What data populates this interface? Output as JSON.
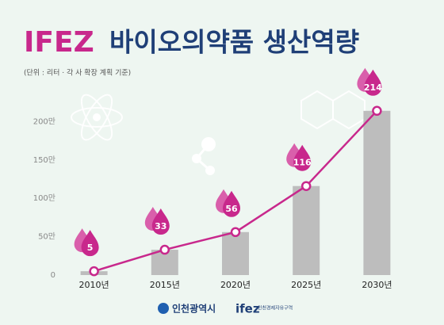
{
  "chart_data": {
    "type": "combo",
    "title_highlight": "IFEZ",
    "title": "바이오의약품 생산역량",
    "subtitle": "(단위 : 리터 · 각 사 확장 계획 기준)",
    "categories": [
      "2010년",
      "2015년",
      "2020년",
      "2025년",
      "2030년"
    ],
    "values": [
      5,
      33,
      56,
      116,
      214
    ],
    "bar_color": "#bdbdbd",
    "line_color": "#c8288c",
    "ylim": [
      0,
      220
    ],
    "yticks": [
      0,
      {
        "value": 50,
        "label": "50만"
      },
      {
        "value": 100,
        "label": "100만"
      },
      {
        "value": 150,
        "label": "150만"
      },
      {
        "value": 200,
        "label": "200만"
      }
    ],
    "grid": false
  },
  "footer": {
    "city": "인천광역시",
    "ifez": "ifez",
    "ifez_sub": "인천경제자유구역"
  }
}
